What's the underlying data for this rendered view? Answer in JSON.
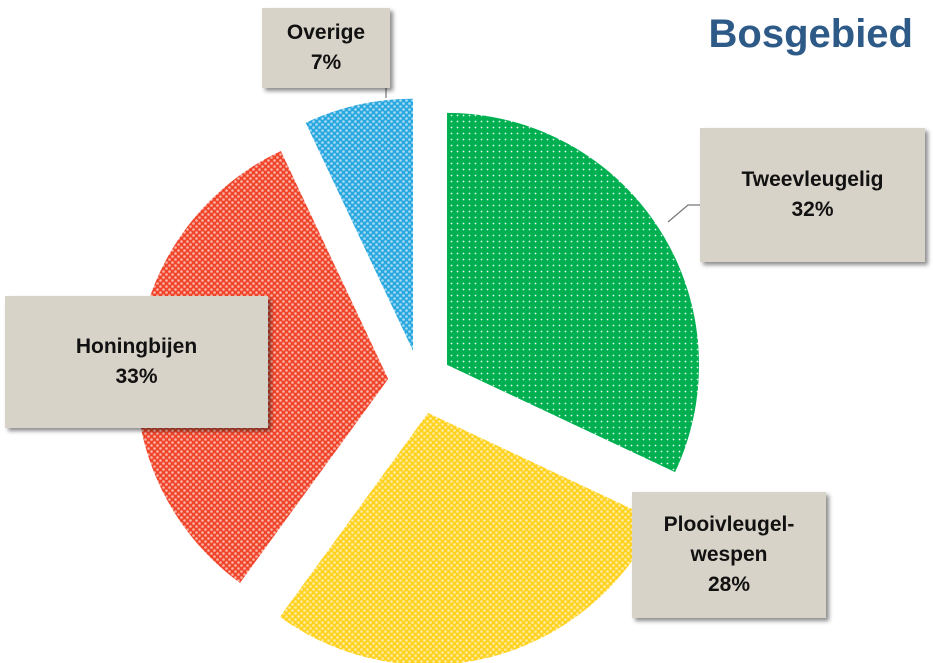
{
  "chart_data": {
    "type": "pie",
    "title": "Bosgebied",
    "categories": [
      "Tweevleugelig",
      "Plooivleugel-wespen",
      "Honingbijen",
      "Overige"
    ],
    "values": [
      32,
      28,
      33,
      7
    ],
    "value_labels": [
      "32%",
      "28%",
      "33%",
      "7%"
    ],
    "colors": [
      "#00b050",
      "#ffd21f",
      "#f0452a",
      "#29a8e0"
    ]
  }
}
